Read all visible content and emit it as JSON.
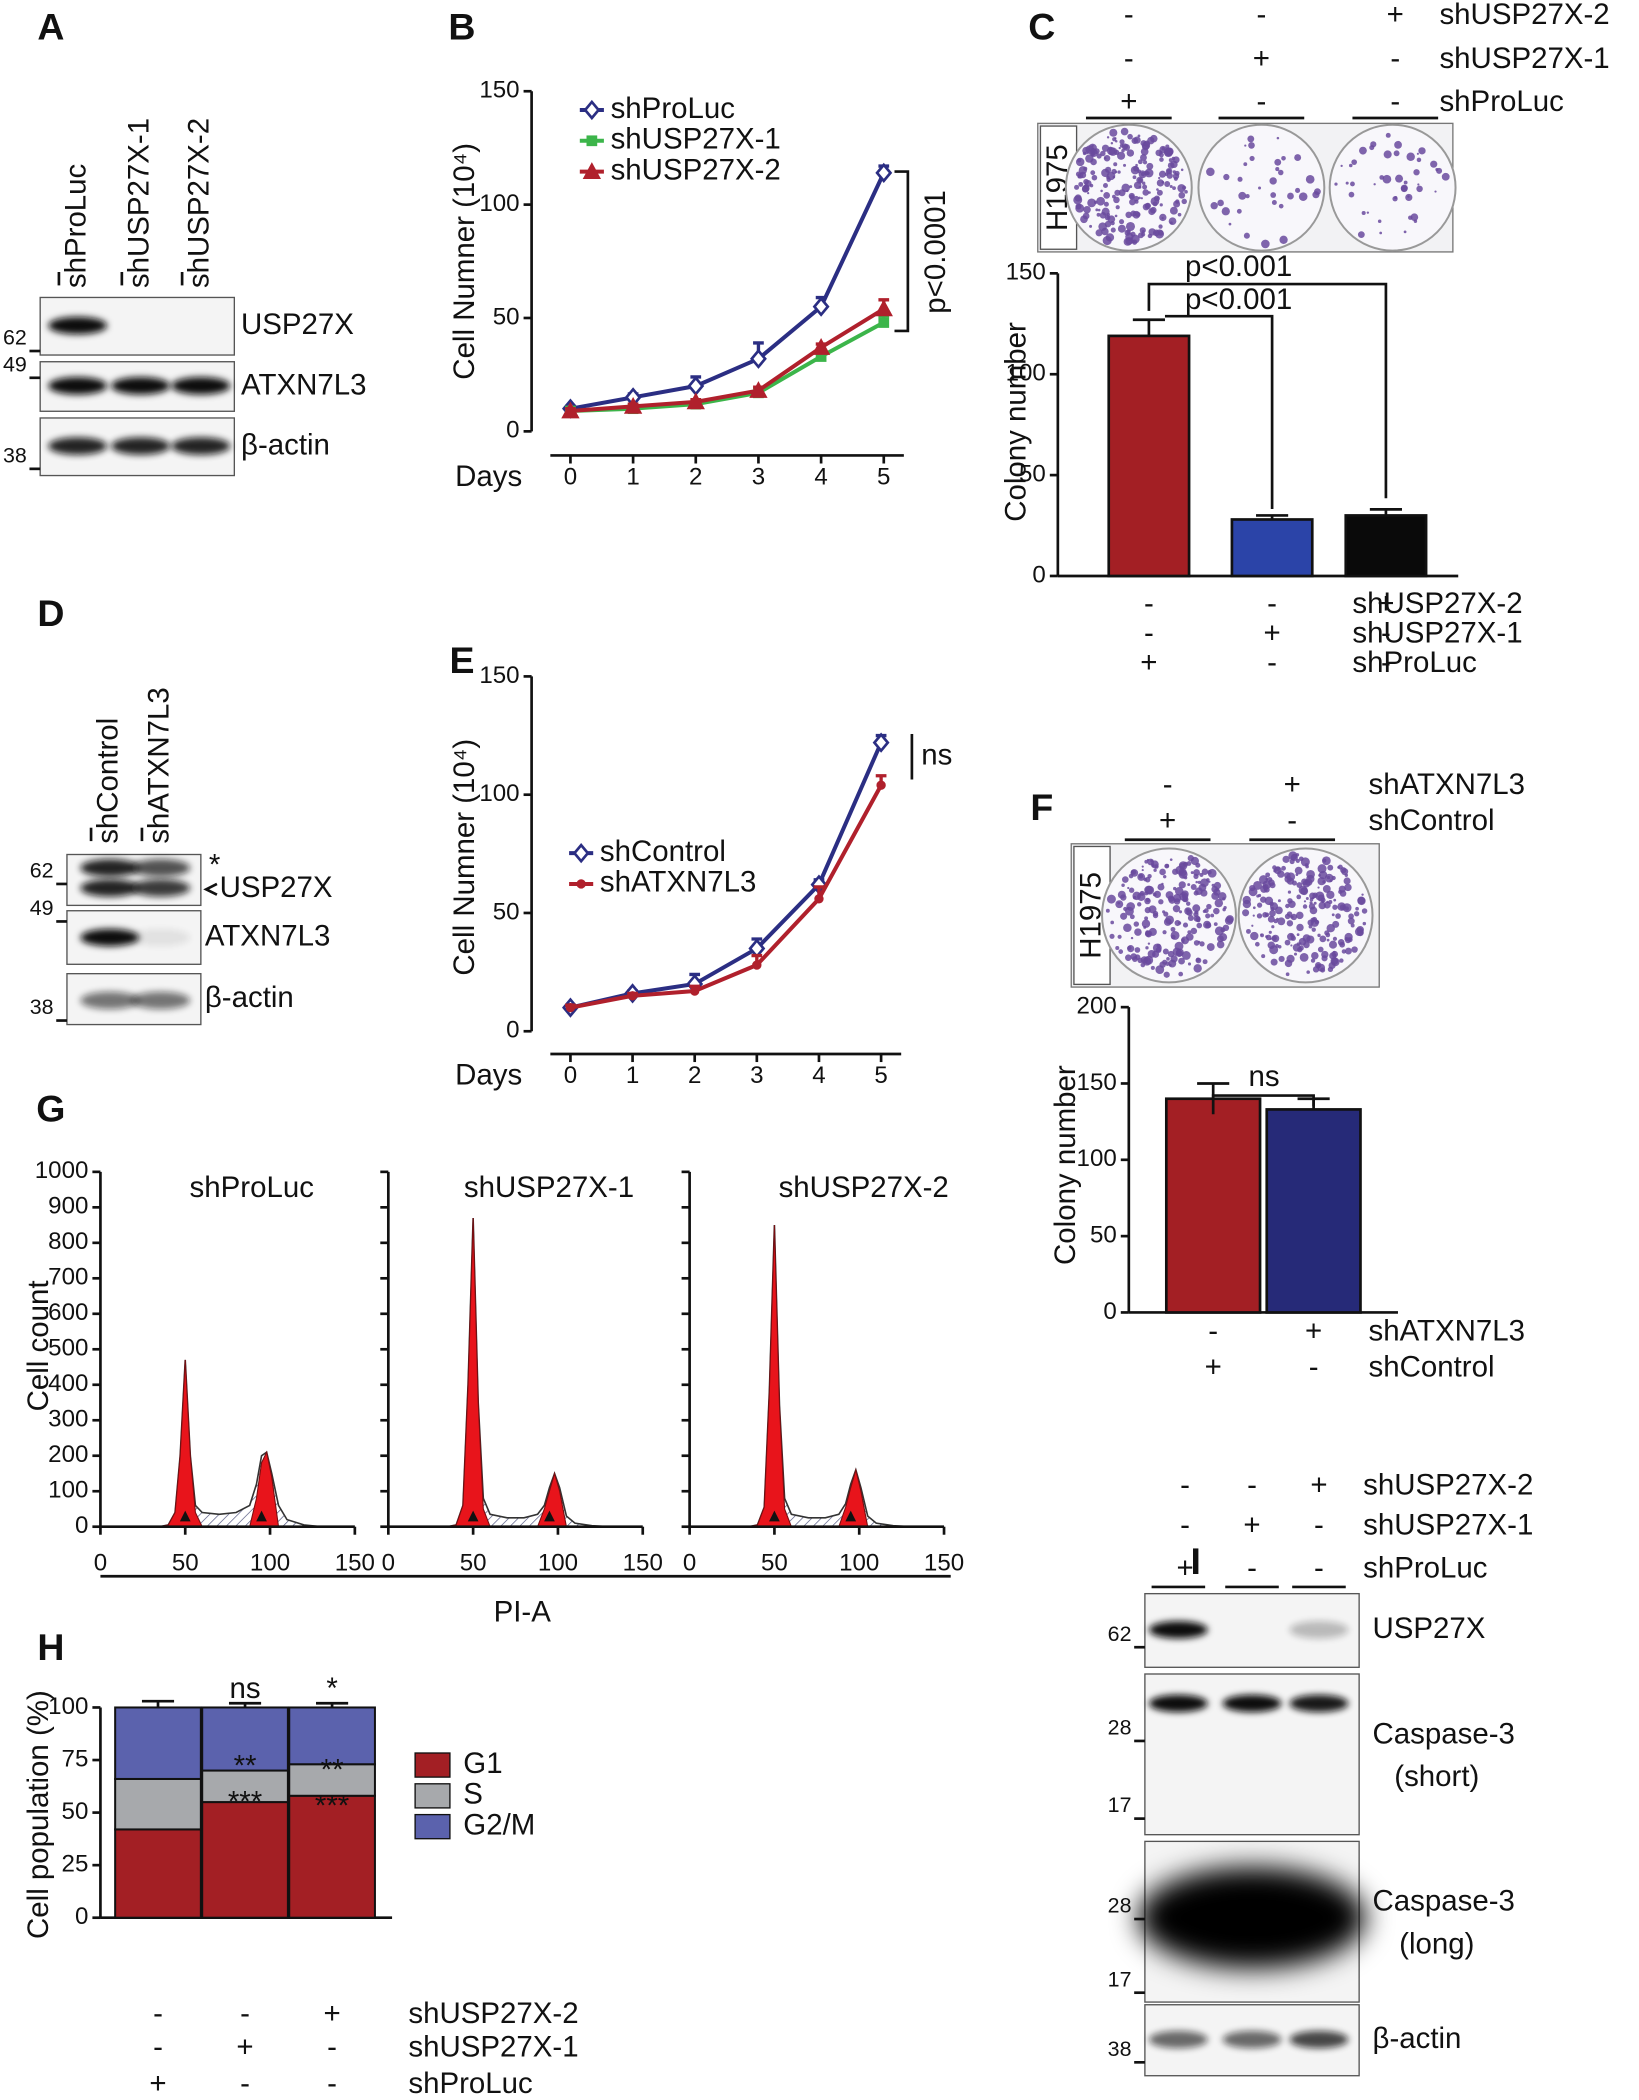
{
  "panel_labels": [
    "A",
    "B",
    "C",
    "D",
    "E",
    "F",
    "G",
    "H",
    "I"
  ],
  "blots": [
    {
      "lanes": [
        "shProLuc",
        "shUSP27X-1",
        "shUSP27X-2"
      ],
      "rows": [
        {
          "label": "USP27X",
          "markers": [
            "62"
          ]
        },
        {
          "label": "ATXN7L3",
          "markers": [
            "49"
          ]
        },
        {
          "label": "β-actin",
          "markers": [
            "38"
          ]
        }
      ]
    },
    {
      "lanes": [
        "shControl",
        "shATXN7L3"
      ],
      "star": "*",
      "rows": [
        {
          "label": "USP27X",
          "markers": [
            "62"
          ]
        },
        {
          "label": "ATXN7L3",
          "markers": [
            "49"
          ]
        },
        {
          "label": "β-actin",
          "markers": [
            "38"
          ]
        }
      ]
    },
    {
      "conditions": [
        {
          "name": "shUSP27X-2",
          "signs": [
            "-",
            "-",
            "+"
          ]
        },
        {
          "name": "shUSP27X-1",
          "signs": [
            "-",
            "+",
            "-"
          ]
        },
        {
          "name": "shProLuc",
          "signs": [
            "+",
            "-",
            "-"
          ]
        }
      ],
      "rows": [
        {
          "label": "USP27X",
          "markers": [
            "62"
          ]
        },
        {
          "label": "Caspase-3",
          "sublabel": "(short)",
          "markers": [
            "28",
            "17"
          ]
        },
        {
          "label": "Caspase-3",
          "sublabel": "(long)",
          "markers": [
            "28",
            "17"
          ]
        },
        {
          "label": "β-actin",
          "markers": [
            "38"
          ]
        }
      ]
    }
  ],
  "plates": [
    {
      "cell_line": "H1975",
      "conditions": [
        {
          "name": "shUSP27X-2",
          "signs": [
            "-",
            "-",
            "+"
          ]
        },
        {
          "name": "shUSP27X-1",
          "signs": [
            "-",
            "+",
            "-"
          ]
        },
        {
          "name": "shProLuc",
          "signs": [
            "+",
            "-",
            "-"
          ]
        }
      ]
    },
    {
      "cell_line": "H1975",
      "conditions": [
        {
          "name": "shATXN7L3",
          "signs": [
            "-",
            "+"
          ]
        },
        {
          "name": "shControl",
          "signs": [
            "+",
            "-"
          ]
        }
      ]
    }
  ],
  "chart_data": [
    {
      "type": "line",
      "x_label": "Days",
      "y_label": "Cell Numner (10⁴)",
      "x": [
        0,
        1,
        2,
        3,
        4,
        5
      ],
      "xlim": [
        0,
        5
      ],
      "xticks": [
        0,
        1,
        2,
        3,
        4,
        5
      ],
      "ylim": [
        0,
        150
      ],
      "yticks": [
        0,
        50,
        100,
        150
      ],
      "series": [
        {
          "name": "shProLuc",
          "color": "#2b2e83",
          "marker": "diamond",
          "values": [
            10,
            15,
            20,
            32,
            55,
            114
          ],
          "errors": [
            1,
            1.5,
            4,
            7,
            4,
            3
          ]
        },
        {
          "name": "shUSP27X-1",
          "color": "#3cb54a",
          "marker": "square",
          "values": [
            9,
            10,
            12,
            17,
            33,
            48
          ],
          "errors": [
            1,
            1,
            1,
            1,
            1.5,
            3
          ]
        },
        {
          "name": "shUSP27X-2",
          "color": "#b0202c",
          "marker": "triangle",
          "values": [
            9,
            11,
            13,
            18,
            37,
            54
          ],
          "errors": [
            1,
            1,
            1,
            1.5,
            1.5,
            4
          ]
        }
      ],
      "annotations": [
        "p<0.0001"
      ]
    },
    {
      "type": "bar",
      "y_label": "Colony number",
      "ylim": [
        0,
        150
      ],
      "yticks": [
        0,
        50,
        100,
        150
      ],
      "values": [
        119,
        28,
        30
      ],
      "errors": [
        8,
        2,
        3
      ],
      "colors": [
        "#a31f24",
        "#2b44a8",
        "#0a0a0a"
      ],
      "conditions": [
        {
          "name": "shUSP27X-2",
          "signs": [
            "-",
            "-",
            "+"
          ]
        },
        {
          "name": "shUSP27X-1",
          "signs": [
            "-",
            "+",
            "-"
          ]
        },
        {
          "name": "shProLuc",
          "signs": [
            "+",
            "-",
            "-"
          ]
        }
      ],
      "annotations": [
        "p<0.001",
        "p<0.001"
      ]
    },
    {
      "type": "line",
      "x_label": "Days",
      "y_label": "Cell Numner (10⁴)",
      "x": [
        0,
        1,
        2,
        3,
        4,
        5
      ],
      "xlim": [
        0,
        5
      ],
      "xticks": [
        0,
        1,
        2,
        3,
        4,
        5
      ],
      "ylim": [
        0,
        150
      ],
      "yticks": [
        0,
        50,
        100,
        150
      ],
      "series": [
        {
          "name": "shControl",
          "color": "#2b2e83",
          "marker": "diamond",
          "values": [
            10,
            16,
            20,
            35,
            62,
            122
          ],
          "errors": [
            1,
            1,
            4,
            4,
            2,
            3
          ]
        },
        {
          "name": "shATXN7L3",
          "color": "#b0202c",
          "marker": "circle",
          "values": [
            10,
            15,
            17,
            28,
            56,
            104
          ],
          "errors": [
            1,
            1,
            2,
            4,
            5,
            4
          ]
        }
      ],
      "annotations": [
        "ns"
      ]
    },
    {
      "type": "bar",
      "y_label": "Colony number",
      "ylim": [
        0,
        200
      ],
      "yticks": [
        0,
        50,
        100,
        150,
        200
      ],
      "values": [
        140,
        133
      ],
      "errors": [
        10,
        7
      ],
      "colors": [
        "#a31f24",
        "#262a78"
      ],
      "conditions": [
        {
          "name": "shATXN7L3",
          "signs": [
            "-",
            "+"
          ]
        },
        {
          "name": "shControl",
          "signs": [
            "+",
            "-"
          ]
        }
      ],
      "annotations": [
        "ns"
      ]
    },
    {
      "type": "area",
      "title": "shProLuc",
      "y_label": "Cell count",
      "x_label": "PI-A",
      "ytick_labels": true,
      "x": [
        35,
        40,
        44,
        47,
        50,
        53,
        56,
        60,
        70,
        80,
        88,
        92,
        95,
        98,
        101,
        105,
        110,
        120,
        130
      ],
      "xlim": [
        0,
        150
      ],
      "xticks": [
        0,
        50,
        100,
        150
      ],
      "ylim": [
        0,
        1000
      ],
      "yticks": [
        0,
        100,
        200,
        300,
        400,
        500,
        600,
        700,
        800,
        900,
        1000
      ],
      "series": [
        {
          "color": "#ffffff",
          "hatch": true,
          "values": [
            0,
            5,
            40,
            200,
            470,
            200,
            60,
            40,
            35,
            40,
            60,
            120,
            200,
            210,
            150,
            60,
            20,
            5,
            0
          ]
        },
        {
          "color": "#e8141b",
          "values": [
            0,
            5,
            40,
            200,
            470,
            200,
            40,
            0,
            0,
            0,
            0,
            0,
            0,
            0,
            0,
            0,
            0,
            0,
            0
          ]
        },
        {
          "color": "#e8141b",
          "values": [
            0,
            0,
            0,
            0,
            0,
            0,
            0,
            0,
            0,
            0,
            0,
            80,
            180,
            210,
            140,
            0,
            0,
            0,
            0
          ]
        }
      ]
    },
    {
      "type": "area",
      "title": "shUSP27X-1",
      "ytick_labels": false,
      "x": [
        35,
        40,
        44,
        47,
        50,
        53,
        56,
        60,
        70,
        80,
        88,
        92,
        95,
        98,
        101,
        105,
        110,
        120,
        130
      ],
      "xlim": [
        0,
        150
      ],
      "xticks": [
        0,
        50,
        100,
        150
      ],
      "ylim": [
        0,
        1000
      ],
      "yticks": [
        0,
        100,
        200,
        300,
        400,
        500,
        600,
        700,
        800,
        900,
        1000
      ],
      "series": [
        {
          "color": "#ffffff",
          "hatch": true,
          "values": [
            0,
            5,
            60,
            400,
            870,
            350,
            80,
            35,
            25,
            25,
            35,
            60,
            110,
            150,
            110,
            30,
            10,
            3,
            0
          ]
        },
        {
          "color": "#e8141b",
          "values": [
            0,
            5,
            60,
            400,
            870,
            350,
            50,
            0,
            0,
            0,
            0,
            0,
            0,
            0,
            0,
            0,
            0,
            0,
            0
          ]
        },
        {
          "color": "#e8141b",
          "values": [
            0,
            0,
            0,
            0,
            0,
            0,
            0,
            0,
            0,
            0,
            0,
            50,
            100,
            150,
            100,
            0,
            0,
            0,
            0
          ]
        }
      ]
    },
    {
      "type": "area",
      "title": "shUSP27X-2",
      "ytick_labels": false,
      "x": [
        35,
        40,
        44,
        47,
        50,
        53,
        56,
        60,
        70,
        80,
        88,
        92,
        95,
        98,
        101,
        105,
        110,
        120,
        130
      ],
      "xlim": [
        0,
        150
      ],
      "xticks": [
        0,
        50,
        100,
        150
      ],
      "ylim": [
        0,
        1000
      ],
      "yticks": [
        0,
        100,
        200,
        300,
        400,
        500,
        600,
        700,
        800,
        900,
        1000
      ],
      "series": [
        {
          "color": "#ffffff",
          "hatch": true,
          "values": [
            0,
            5,
            55,
            380,
            850,
            340,
            80,
            35,
            25,
            25,
            35,
            65,
            120,
            160,
            110,
            30,
            10,
            3,
            0
          ]
        },
        {
          "color": "#e8141b",
          "values": [
            0,
            5,
            55,
            380,
            850,
            340,
            50,
            0,
            0,
            0,
            0,
            0,
            0,
            0,
            0,
            0,
            0,
            0,
            0
          ]
        },
        {
          "color": "#e8141b",
          "values": [
            0,
            0,
            0,
            0,
            0,
            0,
            0,
            0,
            0,
            0,
            0,
            55,
            110,
            160,
            100,
            0,
            0,
            0,
            0
          ]
        }
      ]
    },
    {
      "type": "stacked_bar",
      "y_label": "Cell population (%)",
      "ylim": [
        0,
        100
      ],
      "yticks": [
        0,
        25,
        50,
        75,
        100
      ],
      "series": [
        {
          "name": "G1",
          "color": "#a31f24",
          "values": [
            42,
            55,
            58
          ],
          "errors": [
            4,
            3,
            3
          ]
        },
        {
          "name": "S",
          "color": "#a7a9ac",
          "values": [
            24,
            15,
            15
          ],
          "errors": [
            2,
            2,
            2
          ]
        },
        {
          "name": "G2/M",
          "color": "#5b62ad",
          "values": [
            34,
            30,
            27
          ],
          "errors": [
            3,
            2,
            2
          ]
        }
      ],
      "conditions": [
        {
          "name": "shUSP27X-2",
          "signs": [
            "-",
            "-",
            "+"
          ]
        },
        {
          "name": "shUSP27X-1",
          "signs": [
            "-",
            "+",
            "-"
          ]
        },
        {
          "name": "shProLuc",
          "signs": [
            "+",
            "-",
            "-"
          ]
        }
      ],
      "annotations": [
        "ns",
        "*",
        "**",
        "***",
        "**",
        "***"
      ]
    }
  ]
}
